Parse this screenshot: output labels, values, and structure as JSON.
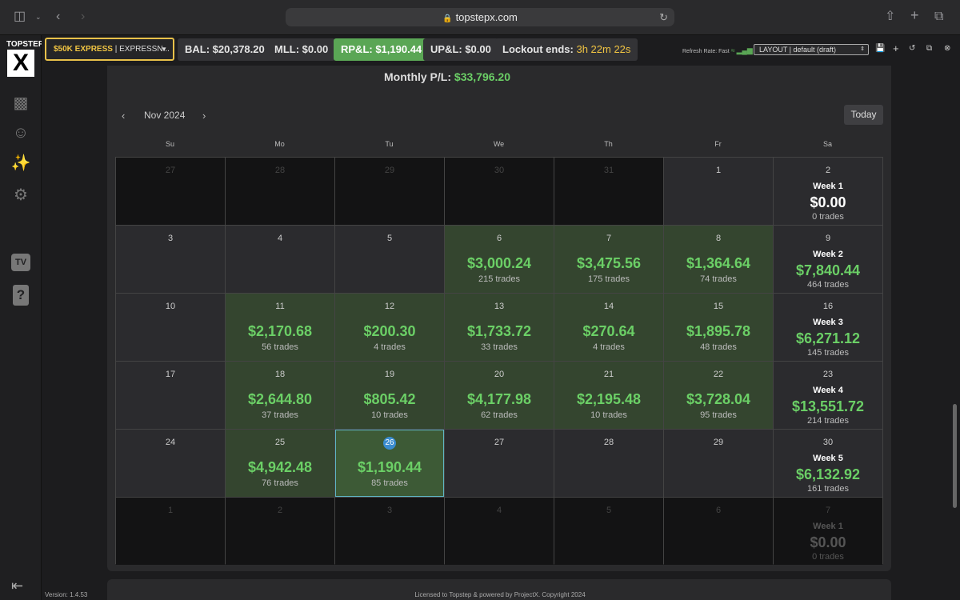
{
  "browser": {
    "url": "topstepx.com"
  },
  "sidebar": {
    "logo_text": "TOPSTEP",
    "logo_mark": "X",
    "tv_label": "TV",
    "help_label": "?",
    "version": "Version: 1.4.53"
  },
  "footer": "Licensed to Topstep & powered by ProjectX. Copyright 2024",
  "topbar": {
    "account_name": "$50K EXPRESS",
    "account_sep": "|",
    "account_sub": "EXPRESSN...",
    "bal": "BAL: $20,378.20",
    "mll": "MLL: $0.00",
    "rpl": "RP&L: $1,190.44",
    "upl": "UP&L: $0.00",
    "lockout_label": "Lockout ends:",
    "lockout_value": "3h 22m 22s",
    "refresh": "Refresh Rate: Fast",
    "layout": "LAYOUT | default (draft)"
  },
  "calendar": {
    "monthly_label": "Monthly P/L:",
    "monthly_value": "$33,796.20",
    "month": "Nov 2024",
    "today": "Today",
    "weekdays": [
      "Su",
      "Mo",
      "Tu",
      "We",
      "Th",
      "Fr",
      "Sa"
    ],
    "rows": [
      [
        {
          "d": "27",
          "t": "out"
        },
        {
          "d": "28",
          "t": "out"
        },
        {
          "d": "29",
          "t": "out"
        },
        {
          "d": "30",
          "t": "out"
        },
        {
          "d": "31",
          "t": "out"
        },
        {
          "d": "1",
          "t": "in"
        },
        {
          "d": "2",
          "t": "week",
          "wk": "Week 1",
          "pnl": "$0.00",
          "trades": "0 trades",
          "zero": true
        }
      ],
      [
        {
          "d": "3",
          "t": "in"
        },
        {
          "d": "4",
          "t": "in"
        },
        {
          "d": "5",
          "t": "in"
        },
        {
          "d": "6",
          "t": "green",
          "pnl": "$3,000.24",
          "trades": "215 trades"
        },
        {
          "d": "7",
          "t": "green",
          "pnl": "$3,475.56",
          "trades": "175 trades"
        },
        {
          "d": "8",
          "t": "green",
          "pnl": "$1,364.64",
          "trades": "74 trades"
        },
        {
          "d": "9",
          "t": "week",
          "wk": "Week 2",
          "pnl": "$7,840.44",
          "trades": "464 trades"
        }
      ],
      [
        {
          "d": "10",
          "t": "in"
        },
        {
          "d": "11",
          "t": "green",
          "pnl": "$2,170.68",
          "trades": "56 trades"
        },
        {
          "d": "12",
          "t": "green",
          "pnl": "$200.30",
          "trades": "4 trades"
        },
        {
          "d": "13",
          "t": "green",
          "pnl": "$1,733.72",
          "trades": "33 trades"
        },
        {
          "d": "14",
          "t": "green",
          "pnl": "$270.64",
          "trades": "4 trades"
        },
        {
          "d": "15",
          "t": "green",
          "pnl": "$1,895.78",
          "trades": "48 trades"
        },
        {
          "d": "16",
          "t": "week",
          "wk": "Week 3",
          "pnl": "$6,271.12",
          "trades": "145 trades"
        }
      ],
      [
        {
          "d": "17",
          "t": "in"
        },
        {
          "d": "18",
          "t": "green",
          "pnl": "$2,644.80",
          "trades": "37 trades"
        },
        {
          "d": "19",
          "t": "green",
          "pnl": "$805.42",
          "trades": "10 trades"
        },
        {
          "d": "20",
          "t": "green",
          "pnl": "$4,177.98",
          "trades": "62 trades"
        },
        {
          "d": "21",
          "t": "green",
          "pnl": "$2,195.48",
          "trades": "10 trades"
        },
        {
          "d": "22",
          "t": "green",
          "pnl": "$3,728.04",
          "trades": "95 trades"
        },
        {
          "d": "23",
          "t": "week",
          "wk": "Week 4",
          "pnl": "$13,551.72",
          "trades": "214 trades"
        }
      ],
      [
        {
          "d": "24",
          "t": "in"
        },
        {
          "d": "25",
          "t": "green",
          "pnl": "$4,942.48",
          "trades": "76 trades"
        },
        {
          "d": "26",
          "t": "today",
          "pnl": "$1,190.44",
          "trades": "85 trades"
        },
        {
          "d": "27",
          "t": "in"
        },
        {
          "d": "28",
          "t": "in"
        },
        {
          "d": "29",
          "t": "in"
        },
        {
          "d": "30",
          "t": "week",
          "wk": "Week 5",
          "pnl": "$6,132.92",
          "trades": "161 trades"
        }
      ],
      [
        {
          "d": "1",
          "t": "out"
        },
        {
          "d": "2",
          "t": "out"
        },
        {
          "d": "3",
          "t": "out"
        },
        {
          "d": "4",
          "t": "out"
        },
        {
          "d": "5",
          "t": "out"
        },
        {
          "d": "6",
          "t": "out"
        },
        {
          "d": "7",
          "t": "outweek",
          "wk": "Week 1",
          "pnl": "$0.00",
          "trades": "0 trades"
        }
      ]
    ]
  }
}
